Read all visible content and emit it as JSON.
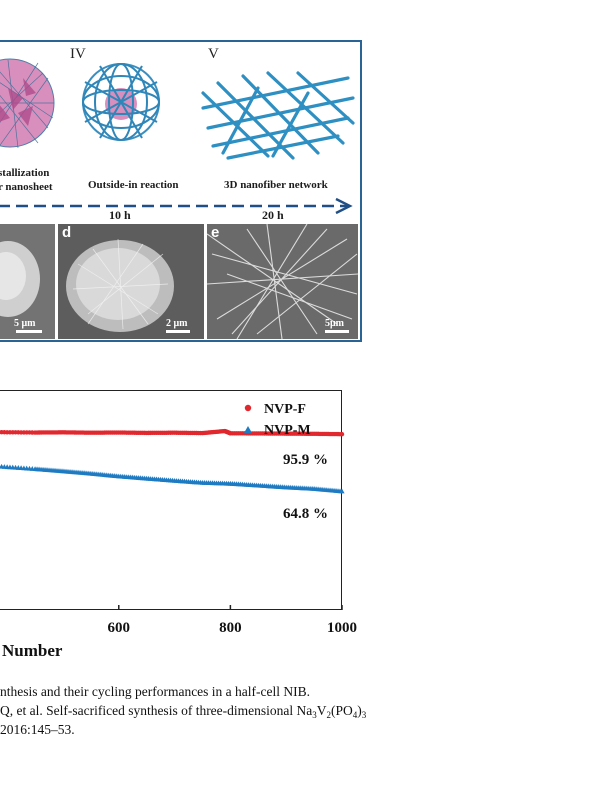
{
  "schematic": {
    "stages": [
      {
        "numeral": "",
        "label_line1": "stallization",
        "label_line2": "r nanosheet"
      },
      {
        "numeral": "IV",
        "label_line1": "Outside-in reaction",
        "label_line2": ""
      },
      {
        "numeral": "V",
        "label_line1": "3D nanofiber network",
        "label_line2": ""
      }
    ],
    "timeline": [
      "10 h",
      "20 h"
    ],
    "sem_panels": [
      {
        "letter": "",
        "scale": "5 μm"
      },
      {
        "letter": "d",
        "scale": "2 μm"
      },
      {
        "letter": "e",
        "scale": "5μm"
      }
    ]
  },
  "chart_data": {
    "type": "scatter",
    "xlabel": "Number",
    "x_ticks": [
      600,
      800,
      1000
    ],
    "xlim": [
      380,
      1000
    ],
    "ylim": [
      0,
      120
    ],
    "legend": {
      "placement": "top-right",
      "entries": [
        "NVP-F",
        "NVP-M"
      ]
    },
    "series": [
      {
        "name": "NVP-F",
        "marker": "circle",
        "color": "#e0282e",
        "x": [
          380,
          450,
          500,
          550,
          600,
          650,
          700,
          750,
          790,
          800,
          850,
          900,
          950,
          1000
        ],
        "y": [
          97.0,
          96.8,
          96.9,
          96.7,
          96.8,
          96.6,
          96.7,
          96.5,
          97.6,
          96.4,
          96.3,
          96.2,
          96.1,
          95.9
        ]
      },
      {
        "name": "NVP-M",
        "marker": "triangle",
        "color": "#1f7bc1",
        "x": [
          380,
          450,
          500,
          550,
          600,
          650,
          700,
          750,
          800,
          850,
          900,
          950,
          1000
        ],
        "y": [
          78.5,
          77.0,
          75.8,
          74.5,
          73.0,
          71.8,
          70.6,
          69.5,
          69.0,
          68.0,
          67.0,
          66.2,
          64.8
        ]
      }
    ],
    "annotations": [
      "95.9 %",
      "64.8 %"
    ]
  },
  "caption": {
    "line1": "nthesis and their cycling performances in a half-cell NIB.",
    "line2_pre": "Q, et al. Self-sacrificed synthesis of three-dimensional Na",
    "line2_s1": "3",
    "line2_mid1": "V",
    "line2_s2": "2",
    "line2_mid2": "(PO",
    "line2_s3": "4",
    "line2_mid3": ")",
    "line2_s4": "3",
    "line3": "2016:145–53."
  }
}
